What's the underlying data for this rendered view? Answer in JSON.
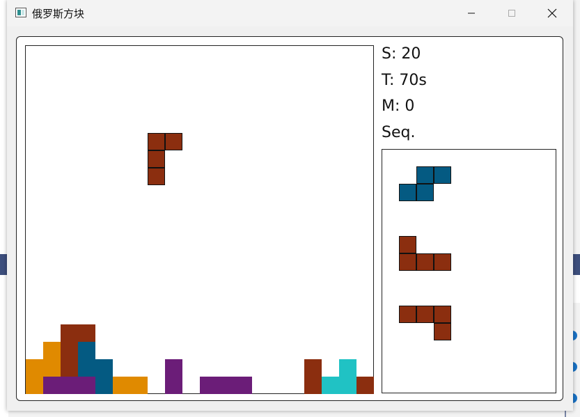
{
  "window": {
    "title": "俄罗斯方块"
  },
  "stats": {
    "score": "S: 20",
    "time": "T: 70s",
    "moves": "M: 0",
    "sequence_label": "Seq."
  },
  "colors": {
    "brown": "#8b2e0f",
    "orange": "#e08a00",
    "purple": "#6b1d78",
    "blue": "#045a82",
    "cyan": "#20c2c4"
  },
  "board": {
    "columns": 20,
    "rows": 20,
    "falling_piece": {
      "color": "brown",
      "cells": [
        [
          7,
          5
        ],
        [
          8,
          5
        ],
        [
          7,
          6
        ],
        [
          7,
          7
        ]
      ]
    },
    "locked_cells": [
      {
        "col": 0,
        "row": 18,
        "color": "orange"
      },
      {
        "col": 0,
        "row": 19,
        "color": "orange"
      },
      {
        "col": 1,
        "row": 17,
        "color": "orange"
      },
      {
        "col": 1,
        "row": 18,
        "color": "orange"
      },
      {
        "col": 1,
        "row": 19,
        "color": "purple"
      },
      {
        "col": 2,
        "row": 16,
        "color": "brown"
      },
      {
        "col": 2,
        "row": 17,
        "color": "brown"
      },
      {
        "col": 2,
        "row": 18,
        "color": "brown"
      },
      {
        "col": 2,
        "row": 19,
        "color": "purple"
      },
      {
        "col": 3,
        "row": 16,
        "color": "brown"
      },
      {
        "col": 3,
        "row": 17,
        "color": "blue"
      },
      {
        "col": 3,
        "row": 18,
        "color": "blue"
      },
      {
        "col": 3,
        "row": 19,
        "color": "purple"
      },
      {
        "col": 4,
        "row": 18,
        "color": "blue"
      },
      {
        "col": 4,
        "row": 19,
        "color": "blue"
      },
      {
        "col": 5,
        "row": 19,
        "color": "orange"
      },
      {
        "col": 6,
        "row": 19,
        "color": "orange"
      },
      {
        "col": 8,
        "row": 18,
        "color": "purple"
      },
      {
        "col": 8,
        "row": 19,
        "color": "purple"
      },
      {
        "col": 10,
        "row": 19,
        "color": "purple"
      },
      {
        "col": 11,
        "row": 19,
        "color": "purple"
      },
      {
        "col": 12,
        "row": 19,
        "color": "purple"
      },
      {
        "col": 16,
        "row": 18,
        "color": "brown"
      },
      {
        "col": 16,
        "row": 19,
        "color": "brown"
      },
      {
        "col": 17,
        "row": 19,
        "color": "cyan"
      },
      {
        "col": 18,
        "row": 18,
        "color": "cyan"
      },
      {
        "col": 18,
        "row": 19,
        "color": "cyan"
      },
      {
        "col": 19,
        "row": 19,
        "color": "brown"
      }
    ]
  },
  "sequence": [
    {
      "color": "blue",
      "cells": [
        [
          1,
          0
        ],
        [
          2,
          0
        ],
        [
          0,
          1
        ],
        [
          1,
          1
        ]
      ]
    },
    {
      "color": "brown",
      "cells": [
        [
          0,
          0
        ],
        [
          0,
          1
        ],
        [
          1,
          1
        ],
        [
          2,
          1
        ]
      ]
    },
    {
      "color": "brown",
      "cells": [
        [
          0,
          0
        ],
        [
          1,
          0
        ],
        [
          2,
          0
        ],
        [
          2,
          1
        ]
      ]
    }
  ]
}
